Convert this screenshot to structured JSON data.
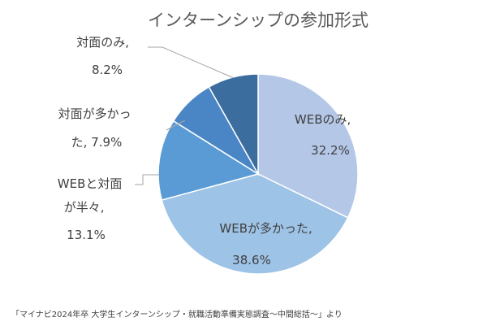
{
  "chart_data": {
    "type": "pie",
    "title": "インターンシップの参加形式",
    "categories": [
      "WEBのみ",
      "WEBが多かった",
      "WEBと対面が半々",
      "対面が多かった",
      "対面のみ"
    ],
    "values": [
      32.2,
      38.6,
      13.1,
      7.9,
      8.2
    ],
    "unit": "%",
    "slices": [
      {
        "name": "WEBのみ",
        "value": 32.2,
        "color": "#b4c7e7",
        "label_lines": [
          "WEBのみ,",
          "32.2%"
        ]
      },
      {
        "name": "WEBが多かった",
        "value": 38.6,
        "color": "#9dc3e6",
        "label_lines": [
          "WEBが多かった,",
          "38.6%"
        ]
      },
      {
        "name": "WEBと対面が半々",
        "value": 13.1,
        "color": "#5b9bd5",
        "label_lines": [
          "WEBと対面",
          "が半々,",
          "13.1%"
        ]
      },
      {
        "name": "対面が多かった",
        "value": 7.9,
        "color": "#4a86c5",
        "label_lines": [
          "対面が多かっ",
          "た, 7.9%"
        ]
      },
      {
        "name": "対面のみ",
        "value": 8.2,
        "color": "#3b6e9e",
        "label_lines": [
          "対面のみ,",
          "8.2%"
        ]
      }
    ],
    "start_angle": "12 o'clock",
    "direction": "clockwise"
  },
  "source": "「マイナビ2024年卒 大学生インターンシップ・就職活動準備実態調査～中間総括～」より"
}
